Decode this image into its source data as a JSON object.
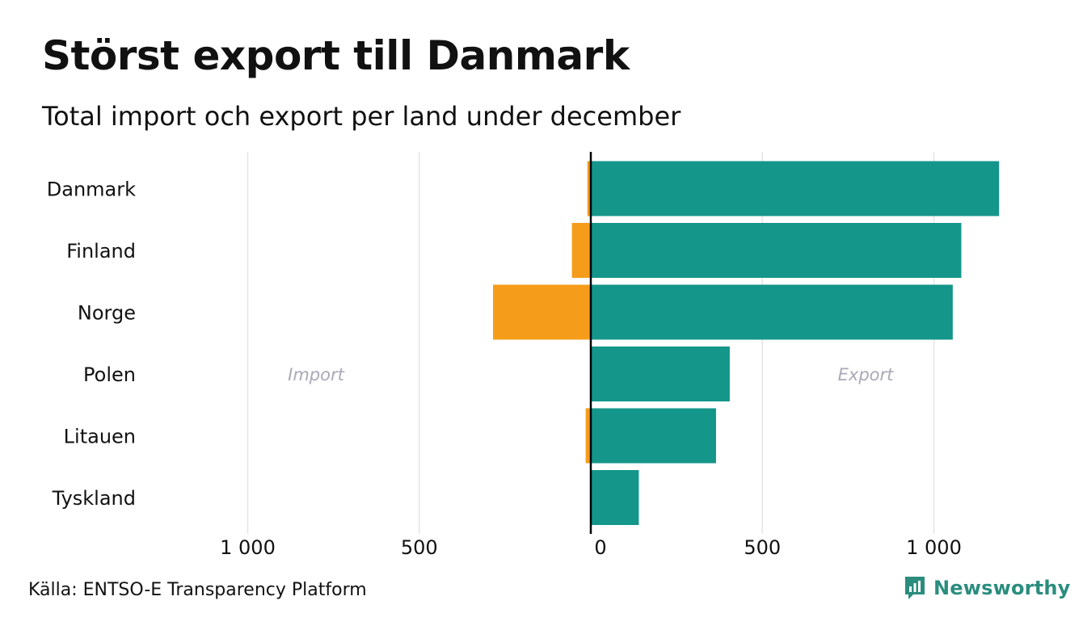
{
  "header": {
    "title": "Störst export till Danmark",
    "subtitle": "Total import och export per land under december"
  },
  "footer": {
    "source": "Källa: ENTSO-E Transparency Platform",
    "brand": "Newsworthy",
    "brand_color": "#2a8d7e"
  },
  "colors": {
    "import": "#f59c1a",
    "export": "#14968a",
    "grid": "#e6e6e6",
    "zero_line": "#000000"
  },
  "chart_data": {
    "type": "bar",
    "orientation": "horizontal",
    "title": "Störst export till Danmark",
    "subtitle": "Total import och export per land under december",
    "categories": [
      "Danmark",
      "Finland",
      "Norge",
      "Polen",
      "Litauen",
      "Tyskland"
    ],
    "series": [
      {
        "name": "Import",
        "values": [
          10,
          55,
          285,
          0,
          15,
          0
        ]
      },
      {
        "name": "Export",
        "values": [
          1190,
          1080,
          1055,
          405,
          365,
          140
        ]
      }
    ],
    "xlim": [
      -1000,
      1190
    ],
    "ticks": [
      -1000,
      -500,
      0,
      500,
      1000
    ],
    "tick_labels": [
      "1 000",
      "500",
      "0",
      "500",
      "1 000"
    ],
    "side_labels": {
      "import": "Import",
      "export": "Export"
    },
    "grid": true,
    "xlabel": "",
    "ylabel": ""
  }
}
